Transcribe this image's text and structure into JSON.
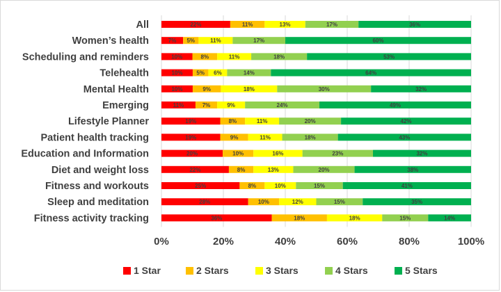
{
  "chart_data": {
    "type": "bar",
    "orientation": "horizontal",
    "stacked": true,
    "percent_stacked": true,
    "title": "",
    "xlabel": "",
    "ylabel": "",
    "xlim": [
      0,
      100
    ],
    "x_ticks": [
      0,
      20,
      40,
      60,
      80,
      100
    ],
    "x_tick_labels": [
      "0%",
      "20%",
      "40%",
      "60%",
      "80%",
      "100%"
    ],
    "grid": true,
    "legend_position": "bottom",
    "categories": [
      "All",
      "Women’s health",
      "Scheduling and reminders",
      "Telehealth",
      "Mental Health",
      "Emerging",
      "Lifestyle Planner",
      "Patient health tracking",
      "Education and Information",
      "Diet and weight loss",
      "Fitness and workouts",
      "Sleep and meditation",
      "Fitness activity tracking"
    ],
    "series": [
      {
        "name": "1 Star",
        "color": "#ff0000",
        "values": [
          22,
          7,
          10,
          10,
          10,
          11,
          19,
          19,
          20,
          22,
          25,
          28,
          36
        ],
        "labels": [
          "22%",
          "7%",
          "10%",
          "10%",
          "10%",
          "11%",
          "19%",
          "19%",
          "20%",
          "22%",
          "25%",
          "28%",
          "36%"
        ]
      },
      {
        "name": "2 Stars",
        "color": "#ffc000",
        "values": [
          11,
          5,
          8,
          5,
          9,
          7,
          8,
          9,
          10,
          8,
          8,
          10,
          18
        ],
        "labels": [
          "11%",
          "5%",
          "8%",
          "5%",
          "9%",
          "7%",
          "8%",
          "9%",
          "10%",
          "8%",
          "8%",
          "10%",
          "18%"
        ]
      },
      {
        "name": "3 Stars",
        "color": "#ffff00",
        "values": [
          13,
          11,
          11,
          6,
          18,
          9,
          11,
          11,
          16,
          13,
          10,
          12,
          18
        ],
        "labels": [
          "13%",
          "11%",
          "11%",
          "6%",
          "18%",
          "9%",
          "11%",
          "11%",
          "16%",
          "13%",
          "10%",
          "12%",
          "18%"
        ]
      },
      {
        "name": "4 Stars",
        "color": "#92d050",
        "values": [
          17,
          17,
          18,
          14,
          30,
          24,
          20,
          18,
          23,
          20,
          15,
          15,
          15
        ],
        "labels": [
          "17%",
          "17%",
          "18%",
          "14%",
          "30%",
          "24%",
          "20%",
          "18%",
          "23%",
          "20%",
          "15%",
          "15%",
          "15%"
        ]
      },
      {
        "name": "5 Stars",
        "color": "#00b050",
        "values": [
          36,
          60,
          53,
          64,
          32,
          49,
          42,
          43,
          32,
          38,
          41,
          35,
          14
        ],
        "labels": [
          "36%",
          "60%",
          "53%",
          "64%",
          "32%",
          "49%",
          "42%",
          "43%",
          "32%",
          "38%",
          "41%",
          "35%",
          "14%"
        ]
      }
    ]
  }
}
